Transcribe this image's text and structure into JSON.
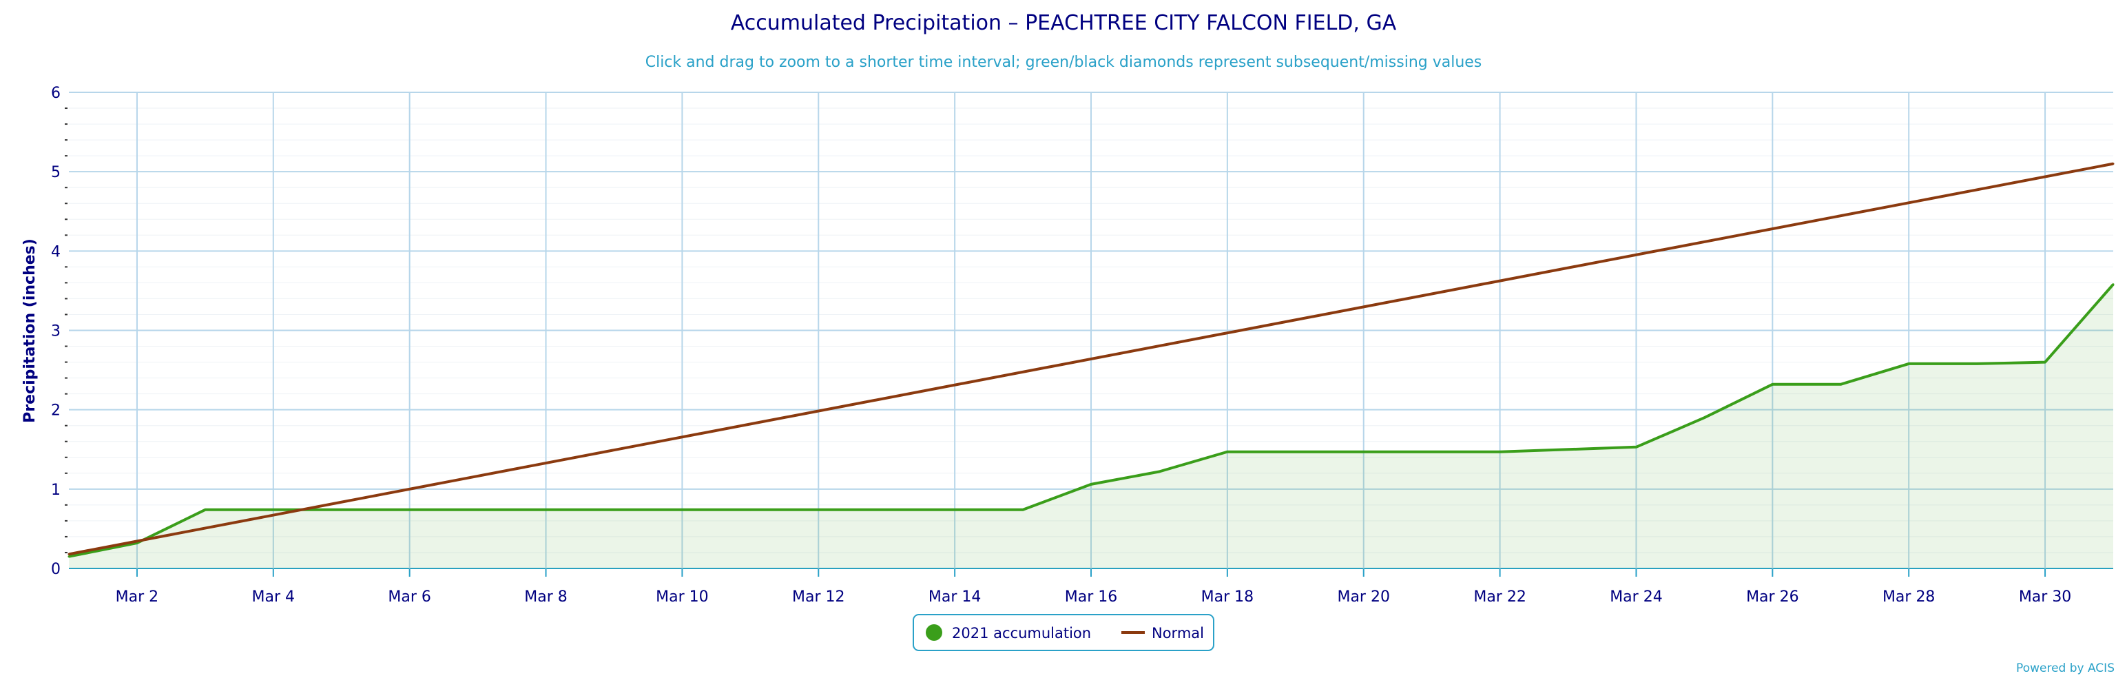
{
  "chart_data": {
    "type": "line",
    "title": "Accumulated Precipitation – PEACHTREE CITY FALCON FIELD, GA",
    "subtitle": "Click and drag to zoom to a shorter time interval; green/black diamonds represent subsequent/missing values",
    "ylabel": "Precipitation (inches)",
    "xlabel": "",
    "ylim": [
      0,
      6
    ],
    "yticks": [
      "0",
      "1",
      "2",
      "3",
      "4",
      "5",
      "6"
    ],
    "xlim": [
      1,
      31
    ],
    "xticks": [
      {
        "day": 2,
        "label": "Mar 2"
      },
      {
        "day": 4,
        "label": "Mar 4"
      },
      {
        "day": 6,
        "label": "Mar 6"
      },
      {
        "day": 8,
        "label": "Mar 8"
      },
      {
        "day": 10,
        "label": "Mar 10"
      },
      {
        "day": 12,
        "label": "Mar 12"
      },
      {
        "day": 14,
        "label": "Mar 14"
      },
      {
        "day": 16,
        "label": "Mar 16"
      },
      {
        "day": 18,
        "label": "Mar 18"
      },
      {
        "day": 20,
        "label": "Mar 20"
      },
      {
        "day": 22,
        "label": "Mar 22"
      },
      {
        "day": 24,
        "label": "Mar 24"
      },
      {
        "day": 26,
        "label": "Mar 26"
      },
      {
        "day": 28,
        "label": "Mar 28"
      },
      {
        "day": 30,
        "label": "Mar 30"
      }
    ],
    "grid": true,
    "legend_position": "bottom-center",
    "series": [
      {
        "name": "2021 accumulation",
        "color": "#3a9e1a",
        "area": true,
        "x": [
          1,
          2,
          3,
          4,
          5,
          6,
          7,
          8,
          9,
          10,
          11,
          12,
          13,
          14,
          15,
          16,
          17,
          18,
          19,
          20,
          21,
          22,
          23,
          24,
          25,
          26,
          27,
          28,
          29,
          30,
          31
        ],
        "values": [
          0.15,
          0.32,
          0.74,
          0.74,
          0.74,
          0.74,
          0.74,
          0.74,
          0.74,
          0.74,
          0.74,
          0.74,
          0.74,
          0.74,
          0.74,
          1.06,
          1.22,
          1.47,
          1.47,
          1.47,
          1.47,
          1.47,
          1.5,
          1.53,
          1.9,
          2.32,
          2.32,
          2.58,
          2.58,
          2.6,
          3.58
        ]
      },
      {
        "name": "Normal",
        "color": "#8b3a0f",
        "area": false,
        "x": [
          1,
          31
        ],
        "values": [
          0.18,
          5.1
        ]
      }
    ]
  },
  "credit": "Powered by ACIS"
}
